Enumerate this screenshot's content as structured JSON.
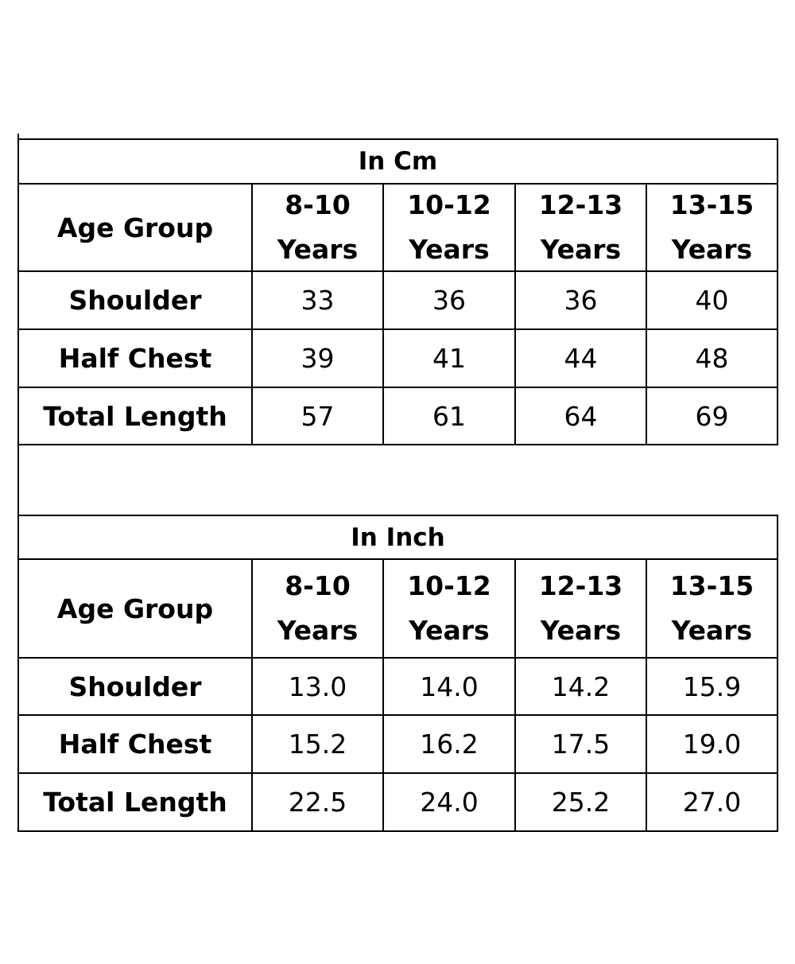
{
  "tables": [
    {
      "title": "In Cm",
      "header_label": "Age Group",
      "columns": [
        {
          "range": "8-10",
          "unit": "Years"
        },
        {
          "range": "10-12",
          "unit": "Years"
        },
        {
          "range": "12-13",
          "unit": "Years"
        },
        {
          "range": "13-15",
          "unit": "Years"
        }
      ],
      "rows": [
        {
          "label": "Shoulder",
          "values": [
            "33",
            "36",
            "36",
            "40"
          ]
        },
        {
          "label": "Half Chest",
          "values": [
            "39",
            "41",
            "44",
            "48"
          ]
        },
        {
          "label": "Total Length",
          "values": [
            "57",
            "61",
            "64",
            "69"
          ]
        }
      ]
    },
    {
      "title": "In Inch",
      "header_label": "Age Group",
      "columns": [
        {
          "range": "8-10",
          "unit": "Years"
        },
        {
          "range": "10-12",
          "unit": "Years"
        },
        {
          "range": "12-13",
          "unit": "Years"
        },
        {
          "range": "13-15",
          "unit": "Years"
        }
      ],
      "rows": [
        {
          "label": "Shoulder",
          "values": [
            "13.0",
            "14.0",
            "14.2",
            "15.9"
          ]
        },
        {
          "label": "Half Chest",
          "values": [
            "15.2",
            "16.2",
            "17.5",
            "19.0"
          ]
        },
        {
          "label": "Total Length",
          "values": [
            "22.5",
            "24.0",
            "25.2",
            "27.0"
          ]
        }
      ]
    }
  ]
}
